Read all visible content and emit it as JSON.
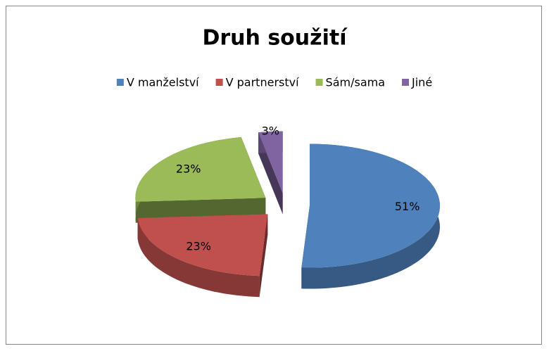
{
  "chart_data": {
    "type": "pie",
    "title": "Druh soužití",
    "categories": [
      "V manželství",
      "V partnerství",
      "Sám/sama",
      "Jiné"
    ],
    "values": [
      51,
      23,
      23,
      3
    ],
    "value_labels": [
      "51%",
      "23%",
      "23%",
      "3%"
    ],
    "colors": [
      "#4f81bd",
      "#c0504d",
      "#9bbb59",
      "#8064a2"
    ],
    "legend": "top"
  }
}
